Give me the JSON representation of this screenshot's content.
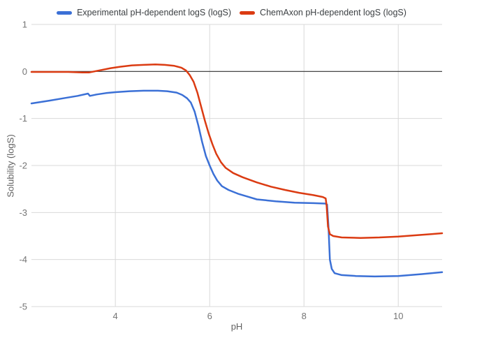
{
  "chart_data": {
    "type": "line",
    "title": "",
    "xlabel": "pH",
    "ylabel": "Solubility (logS)",
    "xlim": [
      2.22,
      10.93
    ],
    "ylim": [
      -5,
      1
    ],
    "x_ticks": [
      4,
      6,
      8,
      10
    ],
    "y_ticks": [
      1,
      0,
      -1,
      -2,
      -3,
      -4,
      -5
    ],
    "grid": "on",
    "zero_line": "on",
    "legend_position": "top",
    "style": {
      "grid_color": "#d9d9d9",
      "zero_line_color": "#333333",
      "tick_text_color": "#757575",
      "axis_title_color": "#616161",
      "legend_text_color": "#3c4043",
      "background": "#ffffff"
    },
    "series": [
      {
        "name": "Experimental pH-dependent logS (logS)",
        "color": "#3b70d6",
        "points": [
          [
            2.22,
            -0.68
          ],
          [
            2.6,
            -0.62
          ],
          [
            2.9,
            -0.57
          ],
          [
            3.2,
            -0.52
          ],
          [
            3.42,
            -0.47
          ],
          [
            3.46,
            -0.52
          ],
          [
            3.6,
            -0.49
          ],
          [
            3.8,
            -0.46
          ],
          [
            4.0,
            -0.44
          ],
          [
            4.3,
            -0.42
          ],
          [
            4.6,
            -0.41
          ],
          [
            4.9,
            -0.41
          ],
          [
            5.1,
            -0.42
          ],
          [
            5.3,
            -0.45
          ],
          [
            5.42,
            -0.5
          ],
          [
            5.52,
            -0.57
          ],
          [
            5.6,
            -0.66
          ],
          [
            5.68,
            -0.85
          ],
          [
            5.76,
            -1.15
          ],
          [
            5.84,
            -1.5
          ],
          [
            5.92,
            -1.8
          ],
          [
            6.0,
            -2.0
          ],
          [
            6.08,
            -2.18
          ],
          [
            6.16,
            -2.32
          ],
          [
            6.26,
            -2.44
          ],
          [
            6.4,
            -2.52
          ],
          [
            6.6,
            -2.6
          ],
          [
            6.8,
            -2.66
          ],
          [
            7.0,
            -2.72
          ],
          [
            7.4,
            -2.76
          ],
          [
            7.8,
            -2.79
          ],
          [
            8.2,
            -2.8
          ],
          [
            8.45,
            -2.81
          ],
          [
            8.49,
            -2.83
          ],
          [
            8.52,
            -3.3
          ],
          [
            8.55,
            -4.0
          ],
          [
            8.59,
            -4.2
          ],
          [
            8.65,
            -4.29
          ],
          [
            8.8,
            -4.33
          ],
          [
            9.1,
            -4.35
          ],
          [
            9.5,
            -4.36
          ],
          [
            10.0,
            -4.35
          ],
          [
            10.5,
            -4.31
          ],
          [
            10.93,
            -4.27
          ]
        ]
      },
      {
        "name": "ChemAxon pH-dependent logS (logS)",
        "color": "#db3b12",
        "points": [
          [
            2.22,
            -0.01
          ],
          [
            2.6,
            -0.01
          ],
          [
            3.0,
            -0.01
          ],
          [
            3.3,
            -0.02
          ],
          [
            3.45,
            -0.02
          ],
          [
            3.55,
            0.0
          ],
          [
            3.7,
            0.03
          ],
          [
            3.9,
            0.07
          ],
          [
            4.1,
            0.1
          ],
          [
            4.35,
            0.13
          ],
          [
            4.6,
            0.14
          ],
          [
            4.85,
            0.15
          ],
          [
            5.05,
            0.14
          ],
          [
            5.25,
            0.12
          ],
          [
            5.4,
            0.08
          ],
          [
            5.5,
            0.02
          ],
          [
            5.58,
            -0.08
          ],
          [
            5.66,
            -0.22
          ],
          [
            5.74,
            -0.45
          ],
          [
            5.82,
            -0.75
          ],
          [
            5.9,
            -1.05
          ],
          [
            5.98,
            -1.32
          ],
          [
            6.06,
            -1.55
          ],
          [
            6.14,
            -1.75
          ],
          [
            6.24,
            -1.93
          ],
          [
            6.34,
            -2.05
          ],
          [
            6.5,
            -2.16
          ],
          [
            6.7,
            -2.25
          ],
          [
            7.0,
            -2.36
          ],
          [
            7.3,
            -2.45
          ],
          [
            7.6,
            -2.52
          ],
          [
            7.9,
            -2.58
          ],
          [
            8.2,
            -2.63
          ],
          [
            8.4,
            -2.67
          ],
          [
            8.46,
            -2.7
          ],
          [
            8.48,
            -2.85
          ],
          [
            8.51,
            -3.3
          ],
          [
            8.55,
            -3.46
          ],
          [
            8.62,
            -3.5
          ],
          [
            8.8,
            -3.53
          ],
          [
            9.2,
            -3.54
          ],
          [
            9.6,
            -3.53
          ],
          [
            10.0,
            -3.51
          ],
          [
            10.4,
            -3.48
          ],
          [
            10.7,
            -3.46
          ],
          [
            10.93,
            -3.44
          ]
        ]
      }
    ]
  }
}
